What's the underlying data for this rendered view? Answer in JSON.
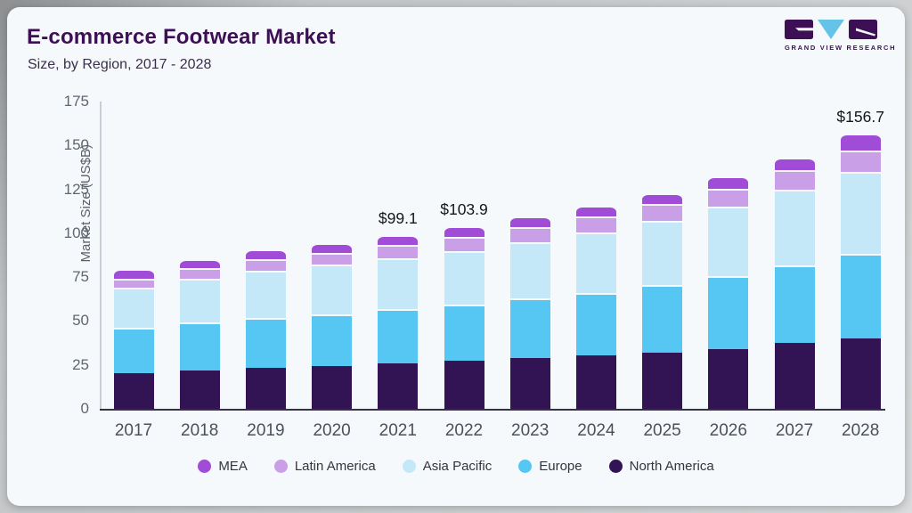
{
  "header": {
    "title": "E-commerce Footwear Market",
    "subtitle": "Size, by Region, 2017 - 2028"
  },
  "logo": {
    "text": "GRAND VIEW RESEARCH",
    "brand_purple": "#3D1055",
    "brand_blue": "#66C3E8"
  },
  "chart_data": {
    "type": "bar",
    "stacked": true,
    "title": "E-commerce Footwear Market",
    "subtitle": "Size, by Region, 2017 - 2028",
    "ylabel": "Market Size (US$B)",
    "xlabel": "",
    "ylim": [
      0,
      175
    ],
    "yticks": [
      0,
      25,
      50,
      75,
      100,
      125,
      150,
      175
    ],
    "grid": false,
    "legend_position": "bottom",
    "legend_order": [
      "MEA",
      "Latin America",
      "Asia Pacific",
      "Europe",
      "North America"
    ],
    "categories": [
      "2017",
      "2018",
      "2019",
      "2020",
      "2021",
      "2022",
      "2023",
      "2024",
      "2025",
      "2026",
      "2027",
      "2028"
    ],
    "series": [
      {
        "name": "North America",
        "color": "#321353",
        "values": [
          20.5,
          22.0,
          23.2,
          24.5,
          25.7,
          27.2,
          28.9,
          30.4,
          31.9,
          34.0,
          37.3,
          40.1
        ]
      },
      {
        "name": "Europe",
        "color": "#55C7F2",
        "values": [
          25.5,
          27.0,
          28.8,
          29.5,
          31.3,
          32.0,
          34.0,
          35.7,
          38.6,
          41.7,
          44.3,
          48.4
        ]
      },
      {
        "name": "Asia Pacific",
        "color": "#C4E8F8",
        "values": [
          23.0,
          25.0,
          26.8,
          28.0,
          28.6,
          30.6,
          32.2,
          34.4,
          36.4,
          39.3,
          43.0,
          46.3
        ]
      },
      {
        "name": "Latin America",
        "color": "#C9A0E8",
        "values": [
          5.0,
          6.0,
          6.5,
          7.0,
          7.9,
          8.2,
          8.4,
          8.9,
          9.6,
          10.5,
          11.2,
          12.2
        ]
      },
      {
        "name": "MEA",
        "color": "#A04CD6",
        "values": [
          5.5,
          5.2,
          5.5,
          5.5,
          5.6,
          5.9,
          6.0,
          6.1,
          6.5,
          7.0,
          7.5,
          9.7
        ]
      }
    ],
    "annotations": [
      {
        "category": "2021",
        "text": "$99.1"
      },
      {
        "category": "2022",
        "text": "$103.9"
      },
      {
        "category": "2028",
        "text": "$156.7"
      }
    ]
  }
}
